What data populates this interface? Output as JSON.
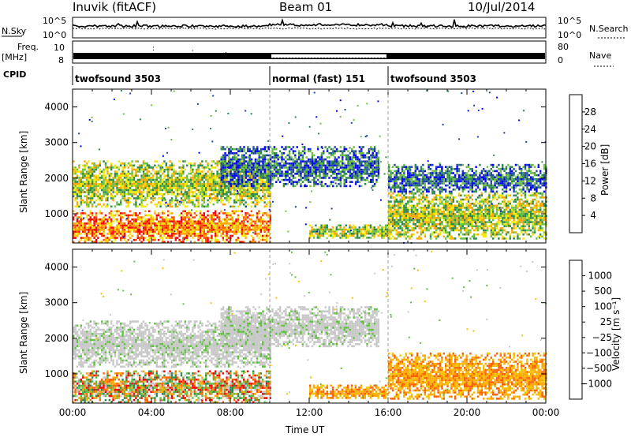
{
  "header": {
    "title": "Inuvik (fitACF)",
    "beam": "Beam 01",
    "date": "10/Jul/2014"
  },
  "aux_panels": {
    "nsky_label": "N.Sky",
    "nsky_ticks": [
      "10^5",
      "10^0"
    ],
    "nsearch_label": "N.Search",
    "nsearch_ticks": [
      "10^5",
      "10^0"
    ],
    "freq_label_1": "Freq.",
    "freq_label_2": "[MHz]",
    "freq_ticks": [
      "10",
      "8"
    ],
    "nave_label": "Nave",
    "nave_ticks": [
      "80",
      "0"
    ],
    "cpid_label": "CPID",
    "cpid_segments": [
      {
        "name": "twofsound 3503",
        "start_h": 0,
        "end_h": 10
      },
      {
        "name": "normal (fast) 151",
        "start_h": 10,
        "end_h": 16
      },
      {
        "name": "twofsound 3503",
        "start_h": 16,
        "end_h": 24
      }
    ]
  },
  "chart_data": [
    {
      "type": "heatmap",
      "panel": "power",
      "ylabel": "Slant Range [km]",
      "xlabel": "",
      "ylim": [
        180,
        4500
      ],
      "yticks": [
        "1000",
        "2000",
        "3000",
        "4000"
      ],
      "xlim_h": [
        0,
        24
      ],
      "colorbar": {
        "label": "Power [dB]",
        "ticks": [
          "28",
          "24",
          "20",
          "16",
          "12",
          "8",
          "4"
        ],
        "range": [
          0,
          30
        ],
        "colors": [
          "#0000ff",
          "#2040b0",
          "#2d8a4a",
          "#6cc040",
          "#f2ea00",
          "#ffa500",
          "#ff5000",
          "#ff0000"
        ]
      },
      "echo_regions": [
        {
          "t0": 0.0,
          "t1": 10.0,
          "r0": 200,
          "r1": 1100,
          "level": "high"
        },
        {
          "t0": 0.0,
          "t1": 10.0,
          "r0": 1200,
          "r1": 2500,
          "level": "mid"
        },
        {
          "t0": 7.5,
          "t1": 15.5,
          "r0": 1800,
          "r1": 2900,
          "level": "low"
        },
        {
          "t0": 12.0,
          "t1": 16.0,
          "r0": 300,
          "r1": 700,
          "level": "mid"
        },
        {
          "t0": 16.0,
          "t1": 24.0,
          "r0": 300,
          "r1": 1600,
          "level": "mid"
        },
        {
          "t0": 16.0,
          "t1": 24.0,
          "r0": 1600,
          "r1": 2400,
          "level": "low"
        }
      ]
    },
    {
      "type": "heatmap",
      "panel": "velocity",
      "ylabel": "Slant Range [km]",
      "xlabel": "Time UT",
      "ylim": [
        180,
        4500
      ],
      "yticks": [
        "1000",
        "2000",
        "3000",
        "4000"
      ],
      "xlim_h": [
        0,
        24
      ],
      "xticks": [
        "00:00",
        "04:00",
        "08:00",
        "12:00",
        "16:00",
        "20:00",
        "00:00"
      ],
      "colorbar": {
        "label": "Velocity [m s⁻¹]",
        "ticks": [
          "1000",
          "500",
          "100",
          "25",
          "−25",
          "−100",
          "−500",
          "−1000"
        ],
        "range": [
          -1200,
          1200
        ],
        "colors": [
          "#ff0000",
          "#ff6000",
          "#ffa500",
          "#f5c000",
          "#c8c8c8",
          "#60c040",
          "#2d8a4a",
          "#2040b0",
          "#0000ff"
        ]
      },
      "echo_regions": [
        {
          "t0": 0.0,
          "t1": 10.0,
          "r0": 200,
          "r1": 1100,
          "level": "mixed"
        },
        {
          "t0": 0.0,
          "t1": 10.0,
          "r0": 1200,
          "r1": 2500,
          "level": "near-zero"
        },
        {
          "t0": 7.5,
          "t1": 15.5,
          "r0": 1800,
          "r1": 2900,
          "level": "near-zero"
        },
        {
          "t0": 12.0,
          "t1": 16.0,
          "r0": 300,
          "r1": 700,
          "level": "negative"
        },
        {
          "t0": 16.0,
          "t1": 24.0,
          "r0": 300,
          "r1": 1600,
          "level": "negative"
        }
      ]
    }
  ],
  "colors": {
    "grid_dash": "#888888",
    "background": "#ffffff",
    "frame": "#000000"
  }
}
